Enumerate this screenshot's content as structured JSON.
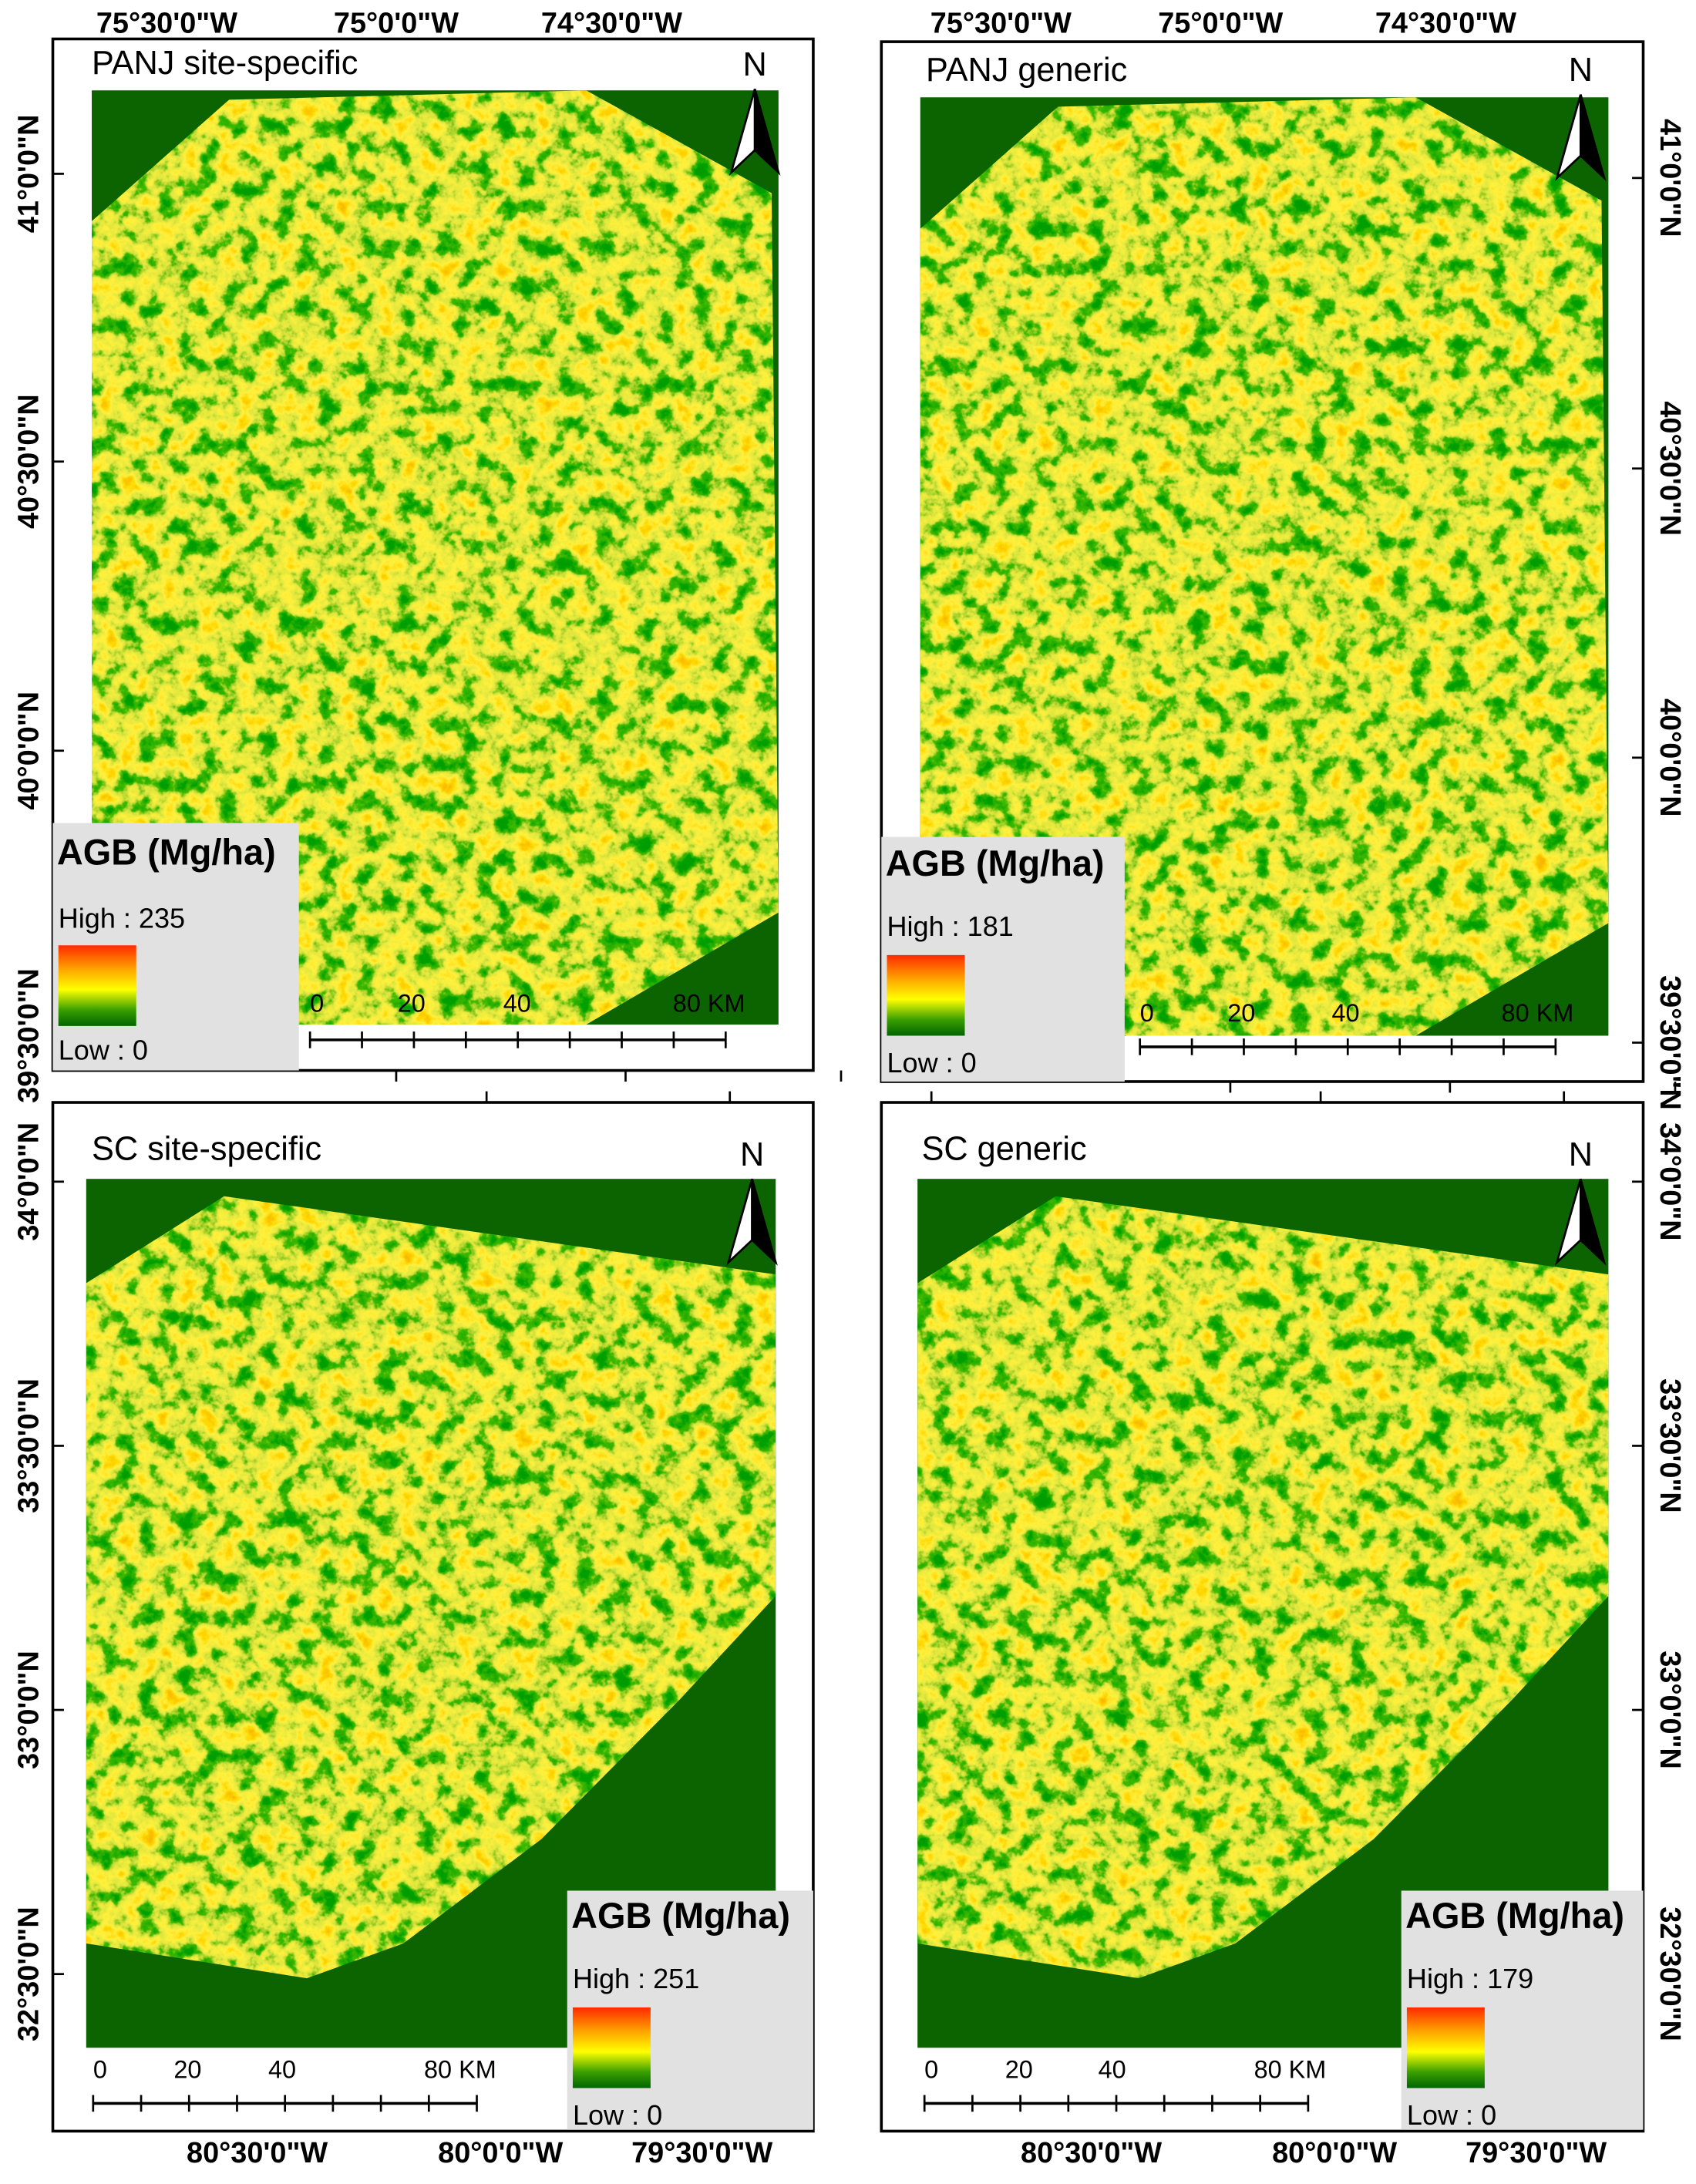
{
  "panels": [
    {
      "title": "PANJ site-specific",
      "north": "N",
      "legend": {
        "title": "AGB (Mg/ha)",
        "high": "High : 235",
        "low": "Low : 0"
      },
      "scale": {
        "labels": [
          "0",
          "20",
          "40",
          "80 KM"
        ]
      },
      "lon_labels": [
        "75°30'0\"W",
        "75°0'0\"W",
        "74°30'0\"W"
      ],
      "lat_labels": [
        "41°0'0\"N",
        "40°30'0\"N",
        "40°0'0\"N",
        "39°30'0\"N"
      ]
    },
    {
      "title": "PANJ generic",
      "north": "N",
      "legend": {
        "title": "AGB (Mg/ha)",
        "high": "High : 181",
        "low": "Low : 0"
      },
      "scale": {
        "labels": [
          "0",
          "20",
          "40",
          "80 KM"
        ]
      },
      "lon_labels": [
        "75°30'0\"W",
        "75°0'0\"W",
        "74°30'0\"W"
      ],
      "lat_labels": [
        "41°0'0\"N",
        "40°30'0\"N",
        "40°0'0\"N",
        "39°30'0\"N"
      ]
    },
    {
      "title": "SC site-specific",
      "north": "N",
      "legend": {
        "title": "AGB (Mg/ha)",
        "high": "High : 251",
        "low": "Low : 0"
      },
      "scale": {
        "labels": [
          "0",
          "20",
          "40",
          "80 KM"
        ]
      },
      "lon_labels": [
        "80°30'0\"W",
        "80°0'0\"W",
        "79°30'0\"W"
      ],
      "lat_labels": [
        "34°0'0\"N",
        "33°30'0\"N",
        "33°0'0\"N",
        "32°30'0\"N"
      ]
    },
    {
      "title": "SC generic",
      "north": "N",
      "legend": {
        "title": "AGB (Mg/ha)",
        "high": "High : 179",
        "low": "Low : 0"
      },
      "scale": {
        "labels": [
          "0",
          "20",
          "40",
          "80 KM"
        ]
      },
      "lon_labels": [
        "80°30'0\"W",
        "80°0'0\"W",
        "79°30'0\"W"
      ],
      "lat_labels": [
        "34°0'0\"N",
        "33°30'0\"N",
        "33°0'0\"N",
        "32°30'0\"N"
      ]
    }
  ]
}
